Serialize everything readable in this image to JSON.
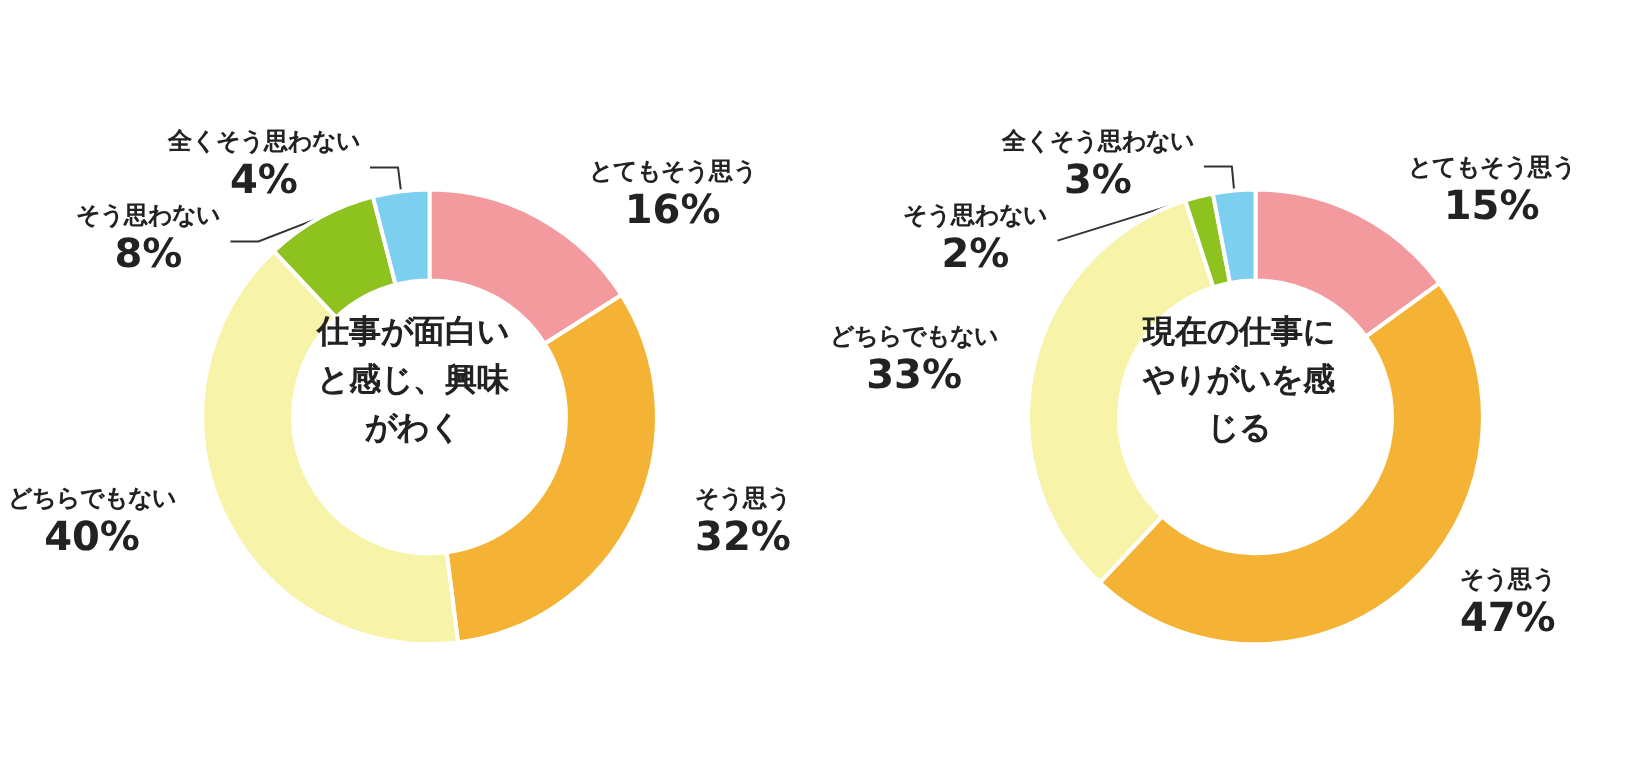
{
  "chart_data": [
    {
      "type": "donut",
      "title": "仕事が面白いと感じ、興味がわく",
      "categories": [
        "とてもそう思う",
        "そう思う",
        "どちらでもない",
        "そう思わない",
        "全くそう思わない"
      ],
      "values": [
        16,
        32,
        40,
        8,
        4
      ],
      "value_labels": [
        "16%",
        "32%",
        "40%",
        "8%",
        "4%"
      ],
      "colors": [
        "#f29a9e",
        "#f5b335",
        "#f7f3a8",
        "#8dc21f",
        "#7dcfef"
      ]
    },
    {
      "type": "donut",
      "title": "現在の仕事にやりがいを感じる",
      "categories": [
        "とてもそう思う",
        "そう思う",
        "どちらでもない",
        "そう思わない",
        "全くそう思わない"
      ],
      "values": [
        15,
        47,
        33,
        2,
        3
      ],
      "value_labels": [
        "15%",
        "47%",
        "33%",
        "2%",
        "3%"
      ],
      "colors": [
        "#f29a9e",
        "#f5b335",
        "#f7f3a8",
        "#8dc21f",
        "#7dcfef"
      ]
    }
  ]
}
